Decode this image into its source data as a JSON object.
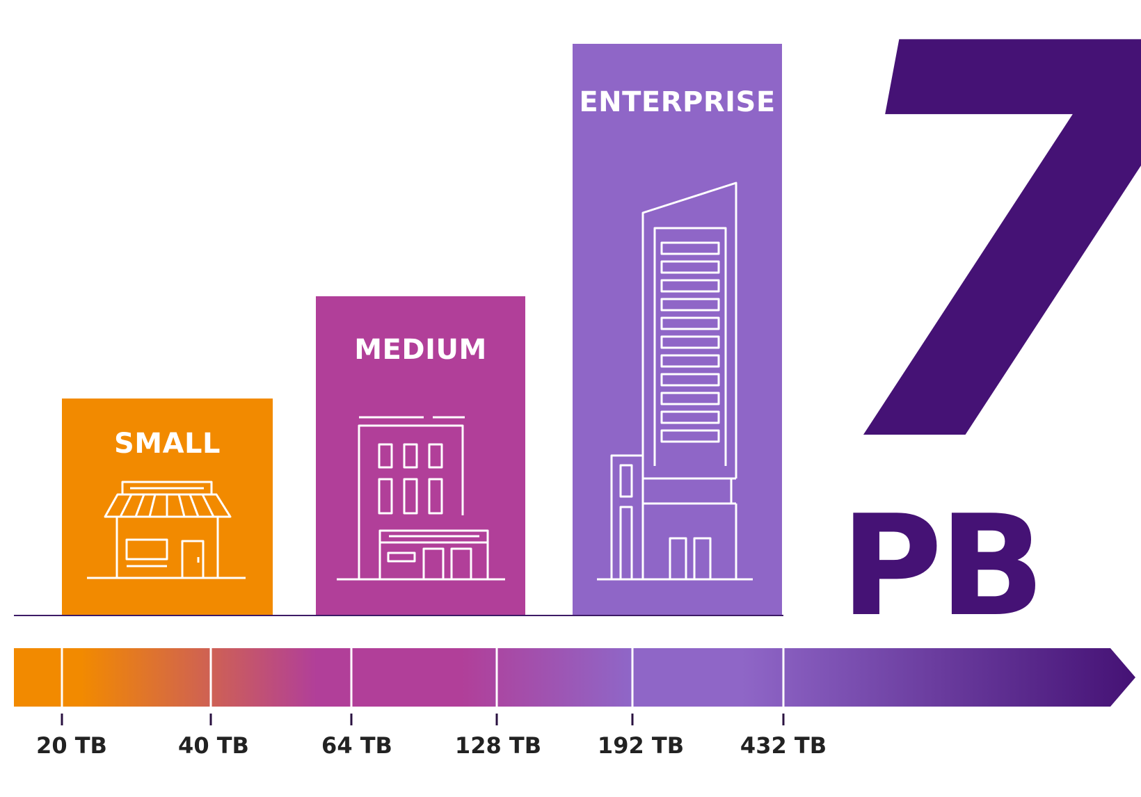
{
  "blocks": {
    "small": {
      "label": "SMALL",
      "color": "#f28a00",
      "icon": "storefront-icon"
    },
    "medium": {
      "label": "MEDIUM",
      "color": "#b13f99",
      "icon": "office-building-icon"
    },
    "enterprise": {
      "label": "ENTERPRISE",
      "color": "#8f66c7",
      "icon": "skyscraper-icon"
    }
  },
  "capacity": {
    "number": "7",
    "unit": "PB",
    "color": "#451275"
  },
  "scale": {
    "ticks": [
      "20 TB",
      "40 TB",
      "64 TB",
      "128 TB",
      "192 TB",
      "432 TB"
    ],
    "gradient_colors": [
      "#f28a00",
      "#b13f99",
      "#8f66c7",
      "#451275"
    ]
  }
}
